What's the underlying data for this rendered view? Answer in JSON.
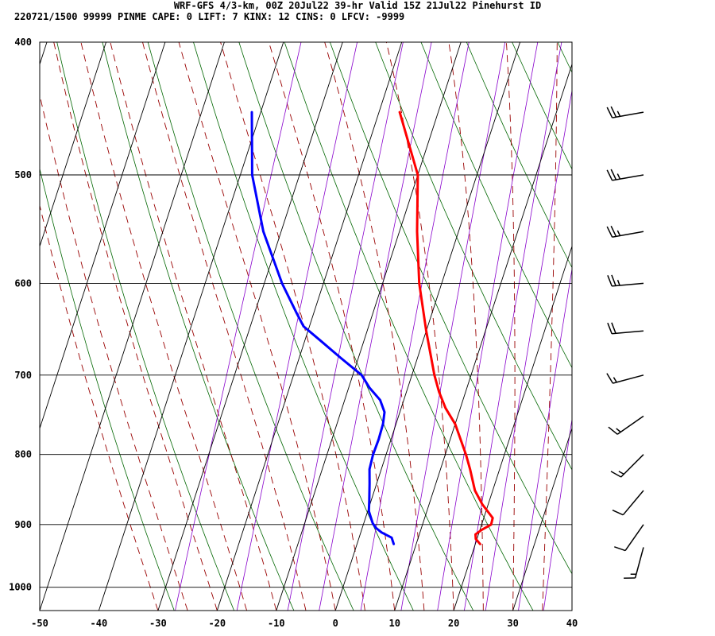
{
  "header": {
    "line1": "WRF-GFS 4/3-km, 00Z 20Jul22 39-hr Valid 15Z 21Jul22 Pinehurst ID",
    "line2": "220721/1500 99999  PINME   CAPE:     0 LIFT:     7 KINX:    12 CINS:     0 LFCV: -9999"
  },
  "chart_data": {
    "type": "line",
    "title": "WRF-GFS 4/3-km, 00Z 20Jul22 39-hr Valid 15Z 21Jul22 Pinehurst ID",
    "subtitle": "220721/1500 99999  PINME   CAPE:     0 LIFT:     7 KINX:    12 CINS:     0 LFCV: -9999",
    "xlabel": "",
    "ylabel": "",
    "x_axis": {
      "min": -50,
      "max": 40,
      "ticks": [
        -50,
        -40,
        -30,
        -20,
        -10,
        0,
        10,
        20,
        30,
        40
      ]
    },
    "y_axis": {
      "scale": "log",
      "min": 1040,
      "max": 400,
      "ticks": [
        400,
        500,
        600,
        700,
        800,
        900,
        1000
      ]
    },
    "grid": true,
    "series": [
      {
        "key": "temperature",
        "color": "#ff0000",
        "points": [
          {
            "p": 930,
            "x": 20.8
          },
          {
            "p": 922,
            "x": 19.8
          },
          {
            "p": 915,
            "x": 19.5
          },
          {
            "p": 908,
            "x": 20.3
          },
          {
            "p": 900,
            "x": 21.6
          },
          {
            "p": 890,
            "x": 21.5
          },
          {
            "p": 870,
            "x": 19.0
          },
          {
            "p": 850,
            "x": 17.0
          },
          {
            "p": 820,
            "x": 15.0
          },
          {
            "p": 800,
            "x": 13.5
          },
          {
            "p": 760,
            "x": 10.0
          },
          {
            "p": 740,
            "x": 7.5
          },
          {
            "p": 720,
            "x": 5.5
          },
          {
            "p": 700,
            "x": 3.8
          },
          {
            "p": 650,
            "x": 0.0
          },
          {
            "p": 600,
            "x": -3.8
          },
          {
            "p": 550,
            "x": -7.0
          },
          {
            "p": 500,
            "x": -10.0
          },
          {
            "p": 450,
            "x": -16.5
          }
        ]
      },
      {
        "key": "dewpoint",
        "color": "#0000ff",
        "points": [
          {
            "p": 930,
            "x": 6.2
          },
          {
            "p": 920,
            "x": 5.5
          },
          {
            "p": 912,
            "x": 3.5
          },
          {
            "p": 905,
            "x": 2.3
          },
          {
            "p": 898,
            "x": 1.5
          },
          {
            "p": 880,
            "x": 0.2
          },
          {
            "p": 865,
            "x": -0.3
          },
          {
            "p": 840,
            "x": -1.2
          },
          {
            "p": 820,
            "x": -2.0
          },
          {
            "p": 800,
            "x": -2.2
          },
          {
            "p": 780,
            "x": -2.1
          },
          {
            "p": 760,
            "x": -2.2
          },
          {
            "p": 745,
            "x": -2.6
          },
          {
            "p": 730,
            "x": -4.0
          },
          {
            "p": 715,
            "x": -6.5
          },
          {
            "p": 700,
            "x": -8.5
          },
          {
            "p": 680,
            "x": -13.0
          },
          {
            "p": 660,
            "x": -17.5
          },
          {
            "p": 645,
            "x": -21.0
          },
          {
            "p": 630,
            "x": -23.0
          },
          {
            "p": 600,
            "x": -27.0
          },
          {
            "p": 550,
            "x": -33.0
          },
          {
            "p": 500,
            "x": -38.0
          },
          {
            "p": 450,
            "x": -41.5
          }
        ]
      }
    ]
  },
  "wind_barbs": [
    {
      "p": 450,
      "dir": 260,
      "speed": 25
    },
    {
      "p": 500,
      "dir": 260,
      "speed": 25
    },
    {
      "p": 550,
      "dir": 260,
      "speed": 25
    },
    {
      "p": 600,
      "dir": 265,
      "speed": 25
    },
    {
      "p": 650,
      "dir": 265,
      "speed": 20
    },
    {
      "p": 700,
      "dir": 255,
      "speed": 15
    },
    {
      "p": 750,
      "dir": 235,
      "speed": 15
    },
    {
      "p": 800,
      "dir": 225,
      "speed": 15
    },
    {
      "p": 850,
      "dir": 220,
      "speed": 10
    },
    {
      "p": 900,
      "dir": 215,
      "speed": 10
    },
    {
      "p": 935,
      "dir": 195,
      "speed": 15
    }
  ],
  "background_lines": {
    "isotherm_color": "#000000",
    "dry_adiabat_color": "#006600",
    "moist_adiabat_color": "#990000",
    "mixing_ratio_color": "#8800cc"
  }
}
